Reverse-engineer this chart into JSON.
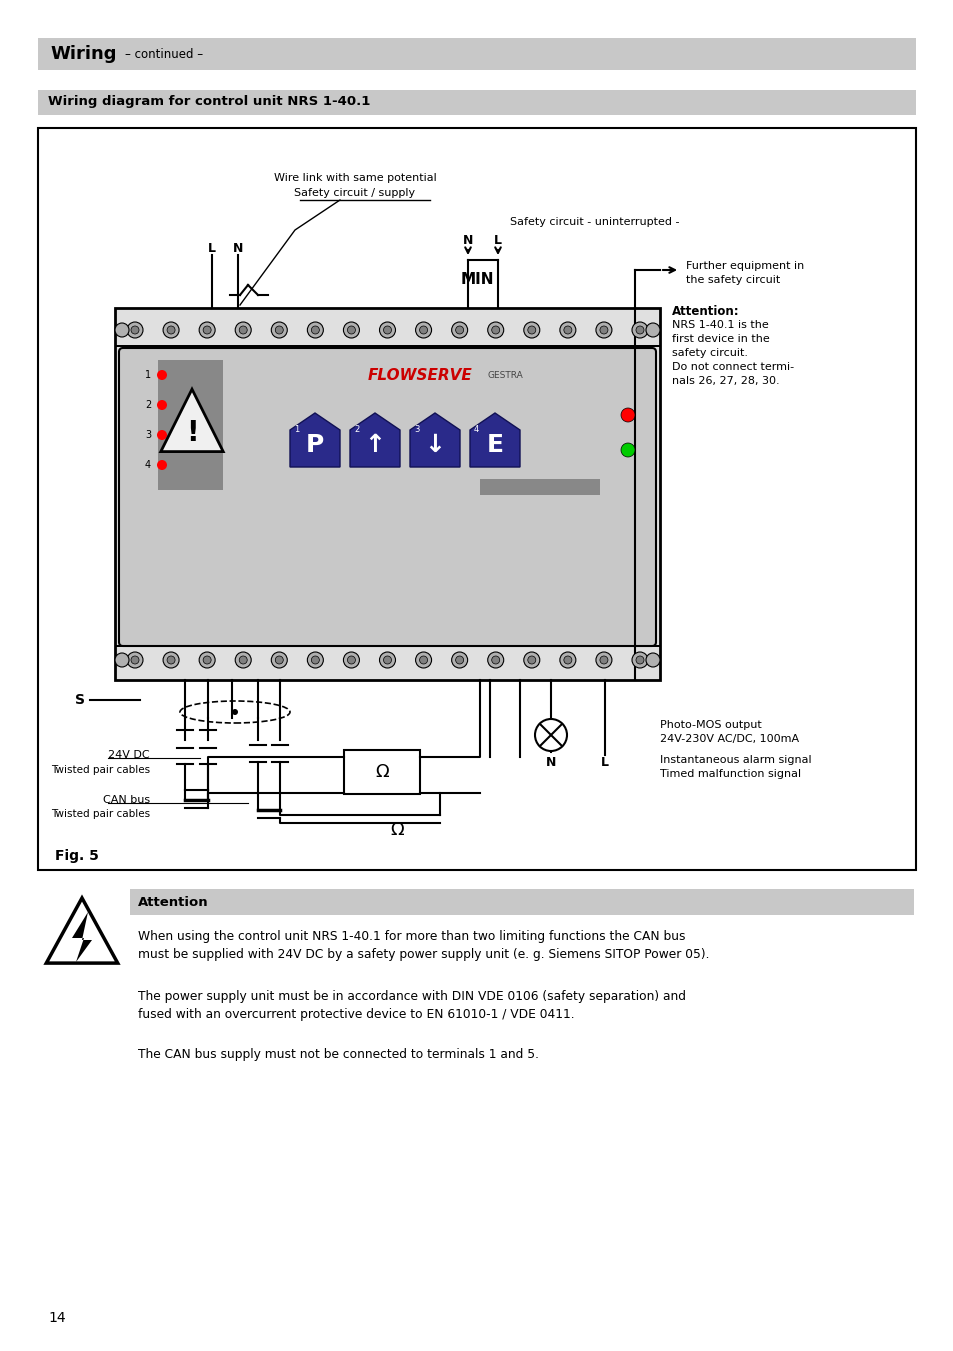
{
  "page_bg": "#ffffff",
  "header_bg": "#c8c8c8",
  "subheader_bg": "#c8c8c8",
  "header_text": "Wiring",
  "header_sub": "– continued –",
  "subheader_text": "Wiring diagram for control unit NRS 1-40.1",
  "fig_label": "Fig. 5",
  "attention_header": "Attention",
  "attention_bg": "#c8c8c8",
  "attention_text1": "When using the control unit NRS 1-40.1 for more than two limiting functions the CAN bus\nmust be supplied with 24V DC by a safety power supply unit (e. g. Siemens SITOP Power 05).",
  "attention_text2": "The power supply unit must be in accordance with DIN VDE 0106 (safety separation) and\nfused with an overcurrent protective device to EN 61010-1 / VDE 0411.",
  "attention_text3": "The CAN bus supply must not be connected to terminals 1 and 5.",
  "page_number": "14",
  "flowserve_color": "#cc0000",
  "button_color": "#2a2a8a",
  "device_gray": "#b8b8b8",
  "panel_gray": "#c0c0c0",
  "terminal_gray": "#909090"
}
